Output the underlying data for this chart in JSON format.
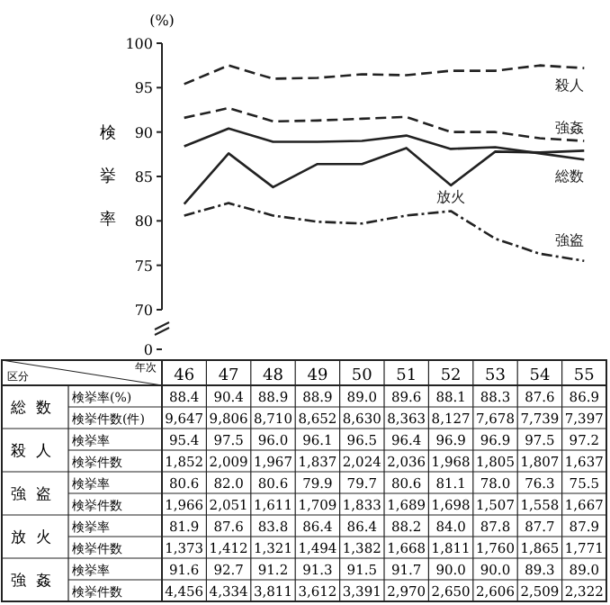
{
  "chart_data": [
    {
      "type": "line",
      "ylabel": "検挙率",
      "annotations": [
        "(%)",
        "0"
      ],
      "categories": [
        "46",
        "47",
        "48",
        "49",
        "50",
        "51",
        "52",
        "53",
        "54",
        "55"
      ],
      "ylim": [
        70,
        100
      ],
      "yticks": [
        70,
        75,
        80,
        85,
        90,
        95,
        100
      ],
      "series": [
        {
          "name": "総数",
          "color": "#222222",
          "line_style": "solid",
          "values": [
            88.4,
            90.4,
            88.9,
            88.9,
            89.0,
            89.6,
            88.1,
            88.3,
            87.6,
            86.9
          ]
        },
        {
          "name": "殺人",
          "color": "#222222",
          "line_style": "dashed",
          "values": [
            95.4,
            97.5,
            96.0,
            96.1,
            96.5,
            96.4,
            96.9,
            96.9,
            97.5,
            97.2
          ]
        },
        {
          "name": "強盗",
          "color": "#222222",
          "line_style": "dotted",
          "values": [
            80.6,
            82.0,
            80.6,
            79.9,
            79.7,
            80.6,
            81.1,
            78.0,
            76.3,
            75.5
          ]
        },
        {
          "name": "放火",
          "color": "#222222",
          "line_style": "solid",
          "values": [
            81.9,
            87.6,
            83.8,
            86.4,
            86.4,
            88.2,
            84.0,
            87.8,
            87.7,
            87.9
          ]
        },
        {
          "name": "強姦",
          "color": "#222222",
          "line_style": "dashed",
          "values": [
            91.6,
            92.7,
            91.2,
            91.3,
            91.5,
            91.7,
            90.0,
            90.0,
            89.3,
            89.0
          ]
        }
      ]
    },
    {
      "type": "other",
      "xlabel": "年次",
      "ylabel": "区分",
      "y2_categories": [
        "総数",
        null,
        "殺人",
        null,
        "強盗",
        null,
        "放火",
        null,
        "強姦",
        null
      ],
      "y_categories": [
        "検挙率(%)",
        "検挙件数(件)",
        "検挙率",
        "検挙件数",
        "検挙率",
        "検挙件数",
        "検挙率",
        "検挙件数",
        "検挙率",
        "検挙件数"
      ],
      "cell_labels": [
        [
          "88.4",
          "90.4",
          "88.9",
          "88.9",
          "89.0",
          "89.6",
          "88.1",
          "88.3",
          "87.6",
          "86.9"
        ],
        [
          "9,647",
          "9,806",
          "8,710",
          "8,652",
          "8,630",
          "8,363",
          "8,127",
          "7,678",
          "7,739",
          "7,397"
        ],
        [
          "95.4",
          "97.5",
          "96.0",
          "96.1",
          "96.5",
          "96.4",
          "96.9",
          "96.9",
          "97.5",
          "97.2"
        ],
        [
          "1,852",
          "2,009",
          "1,967",
          "1,837",
          "2,024",
          "2,036",
          "1,968",
          "1,805",
          "1,807",
          "1,637"
        ],
        [
          "80.6",
          "82.0",
          "80.6",
          "79.9",
          "79.7",
          "80.6",
          "81.1",
          "78.0",
          "76.3",
          "75.5"
        ],
        [
          "1,966",
          "2,051",
          "1,611",
          "1,709",
          "1,833",
          "1,689",
          "1,698",
          "1,507",
          "1,558",
          "1,667"
        ],
        [
          "81.9",
          "87.6",
          "83.8",
          "86.4",
          "86.4",
          "88.2",
          "84.0",
          "87.8",
          "87.7",
          "87.9"
        ],
        [
          "1,373",
          "1,412",
          "1,321",
          "1,494",
          "1,382",
          "1,668",
          "1,811",
          "1,760",
          "1,865",
          "1,771"
        ],
        [
          "91.6",
          "92.7",
          "91.2",
          "91.3",
          "91.5",
          "91.7",
          "90.0",
          "90.0",
          "89.3",
          "89.0"
        ],
        [
          "4,456",
          "4,334",
          "3,811",
          "3,612",
          "3,391",
          "2,970",
          "2,650",
          "2,606",
          "2,509",
          "2,322"
        ]
      ]
    }
  ]
}
